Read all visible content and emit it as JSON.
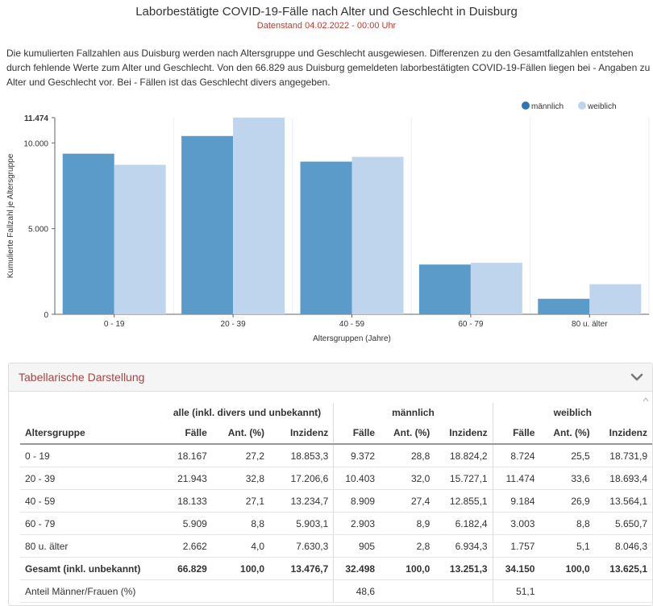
{
  "header": {
    "title": "Laborbestätigte COVID-19-Fälle nach Alter und Geschlecht in Duisburg",
    "subtitle": "Datenstand 04.02.2022 - 00:00 Uhr",
    "description": "Die kumulierten Fallzahlen aus Duisburg werden nach Altersgruppe und Geschlecht ausgewiesen. Differenzen zu den Gesamtfallzahlen entstehen durch fehlende Werte zum Alter und Geschlecht. Von den 66.829 aus Duisburg gemeldeten laborbestätigten COVID-19-Fällen liegen bei - Angaben zu Alter und Geschlecht vor. Bei - Fällen ist das Geschlecht divers angegeben."
  },
  "chart_data": {
    "type": "bar",
    "categories": [
      "0 - 19",
      "20 - 39",
      "40 - 59",
      "60 - 79",
      "80 u. älter"
    ],
    "series": [
      {
        "name": "männlich",
        "color": "#5b9bc9",
        "values": [
          9372,
          10403,
          8909,
          2903,
          905
        ]
      },
      {
        "name": "weiblich",
        "color": "#bfd5ee",
        "values": [
          8724,
          11474,
          9184,
          3003,
          1757
        ]
      }
    ],
    "xlabel": "Altersgruppen (Jahre)",
    "ylabel": "Kumulierte Fallzahl je Altersgruppe",
    "ylim": [
      0,
      11474
    ],
    "yticks": [
      {
        "value": 0,
        "label": "0"
      },
      {
        "value": 5000,
        "label": "5.000"
      },
      {
        "value": 10000,
        "label": "10.000"
      },
      {
        "value": 11474,
        "label": "11.474"
      }
    ],
    "grid": true,
    "legend_position": "top-right"
  },
  "panel": {
    "title": "Tabellarische Darstellung",
    "chevron_icon": "chevron-down-icon"
  },
  "table": {
    "groups": [
      "alle (inkl. divers und unbekannt)",
      "männlich",
      "weiblich"
    ],
    "columns": [
      "Altersgruppe",
      "Fälle",
      "Ant. (%)",
      "Inzidenz",
      "Fälle",
      "Ant. (%)",
      "Inzidenz",
      "Fälle",
      "Ant. (%)",
      "Inzidenz"
    ],
    "rows": [
      [
        "0 - 19",
        "18.167",
        "27,2",
        "18.853,3",
        "9.372",
        "28,8",
        "18.824,2",
        "8.724",
        "25,5",
        "18.731,9"
      ],
      [
        "20 - 39",
        "21.943",
        "32,8",
        "17.206,6",
        "10.403",
        "32,0",
        "15.727,1",
        "11.474",
        "33,6",
        "18.693,4"
      ],
      [
        "40 - 59",
        "18.133",
        "27,1",
        "13.234,7",
        "8.909",
        "27,4",
        "12.855,1",
        "9.184",
        "26,9",
        "13.564,1"
      ],
      [
        "60 - 79",
        "5.909",
        "8,8",
        "5.903,1",
        "2.903",
        "8,9",
        "6.182,4",
        "3.003",
        "8,8",
        "5.650,7"
      ],
      [
        "80 u. älter",
        "2.662",
        "4,0",
        "7.630,3",
        "905",
        "2,8",
        "6.934,3",
        "1.757",
        "5,1",
        "8.046,3"
      ],
      [
        "Gesamt (inkl. unbekannt)",
        "66.829",
        "100,0",
        "13.476,7",
        "32.498",
        "100,0",
        "13.251,3",
        "34.150",
        "100,0",
        "13.625,1"
      ],
      [
        "Anteil Männer/Frauen (%)",
        "",
        "",
        "",
        "48,6",
        "",
        "",
        "51,1",
        "",
        ""
      ]
    ]
  }
}
